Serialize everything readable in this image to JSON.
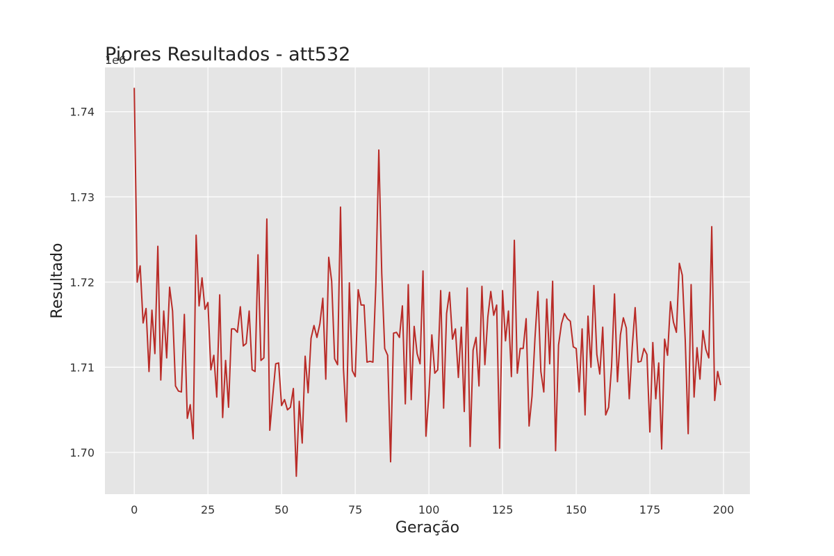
{
  "chart_data": {
    "type": "line",
    "title": "Piores Resultados - att532",
    "xlabel": "Geração",
    "ylabel": "Resultado",
    "y_offset_label": "1e6",
    "xlim": [
      -9.95,
      208.95
    ],
    "ylim": [
      1.6951,
      1.7452
    ],
    "xticks": [
      0,
      25,
      50,
      75,
      100,
      125,
      150,
      175,
      200
    ],
    "yticks": [
      1.7,
      1.71,
      1.72,
      1.73,
      1.74
    ],
    "ytick_labels": [
      "1.70",
      "1.71",
      "1.72",
      "1.73",
      "1.74"
    ],
    "grid": true,
    "background": "#e5e5e5",
    "line_color": "#b92b27",
    "series": [
      {
        "values": [
          1.7428,
          1.72,
          1.7219,
          1.7152,
          1.7169,
          1.7095,
          1.7167,
          1.7116,
          1.7242,
          1.7085,
          1.7166,
          1.7111,
          1.7194,
          1.7166,
          1.7078,
          1.7072,
          1.7071,
          1.7162,
          1.704,
          1.7056,
          1.7016,
          1.7255,
          1.7172,
          1.7205,
          1.7168,
          1.7176,
          1.7097,
          1.7114,
          1.7065,
          1.7185,
          1.7041,
          1.7108,
          1.7053,
          1.7145,
          1.7145,
          1.7141,
          1.7171,
          1.7125,
          1.7128,
          1.7166,
          1.7097,
          1.7095,
          1.7232,
          1.7108,
          1.7111,
          1.7274,
          1.7026,
          1.7066,
          1.7104,
          1.7105,
          1.7055,
          1.7062,
          1.705,
          1.7053,
          1.7075,
          1.6972,
          1.706,
          1.7011,
          1.7113,
          1.707,
          1.7134,
          1.7149,
          1.7135,
          1.7151,
          1.7181,
          1.7086,
          1.7229,
          1.7201,
          1.711,
          1.7103,
          1.7288,
          1.7098,
          1.7036,
          1.7199,
          1.7096,
          1.7089,
          1.7191,
          1.7173,
          1.7173,
          1.7106,
          1.7107,
          1.7106,
          1.7198,
          1.7355,
          1.721,
          1.7122,
          1.7114,
          1.6989,
          1.714,
          1.7141,
          1.7135,
          1.7172,
          1.7057,
          1.7197,
          1.7062,
          1.7148,
          1.7116,
          1.7104,
          1.7213,
          1.7019,
          1.7068,
          1.7138,
          1.7093,
          1.7097,
          1.719,
          1.7052,
          1.7163,
          1.7188,
          1.7133,
          1.7145,
          1.7088,
          1.7147,
          1.7048,
          1.7193,
          1.7007,
          1.712,
          1.7135,
          1.7078,
          1.7195,
          1.7103,
          1.7159,
          1.7189,
          1.7161,
          1.7173,
          1.7005,
          1.719,
          1.7131,
          1.7166,
          1.7089,
          1.7249,
          1.7093,
          1.7122,
          1.7122,
          1.7157,
          1.7031,
          1.7066,
          1.7134,
          1.7189,
          1.7095,
          1.7071,
          1.718,
          1.7104,
          1.7201,
          1.7002,
          1.7126,
          1.7151,
          1.7163,
          1.7157,
          1.7154,
          1.7124,
          1.7122,
          1.7071,
          1.7145,
          1.7044,
          1.716,
          1.71,
          1.7196,
          1.7115,
          1.7092,
          1.7147,
          1.7044,
          1.7053,
          1.7101,
          1.7186,
          1.7083,
          1.7138,
          1.7158,
          1.7146,
          1.7063,
          1.7123,
          1.717,
          1.7106,
          1.7107,
          1.7122,
          1.7115,
          1.7024,
          1.7129,
          1.7063,
          1.7105,
          1.7004,
          1.7133,
          1.7114,
          1.7177,
          1.7153,
          1.7141,
          1.7222,
          1.7208,
          1.7132,
          1.7022,
          1.7197,
          1.7065,
          1.7123,
          1.7086,
          1.7143,
          1.7121,
          1.7111,
          1.7265,
          1.7061,
          1.7095,
          1.7079
        ]
      }
    ]
  }
}
